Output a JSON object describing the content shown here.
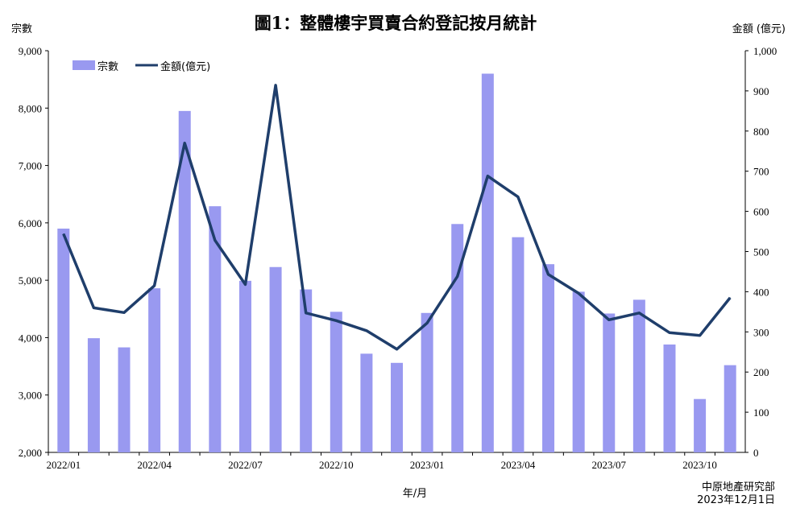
{
  "title": "圖1：整體樓宇買賣合約登記按月統計",
  "left_axis_label": "宗數",
  "right_axis_label": "金額 (億元)",
  "x_axis_label": "年/月",
  "source": [
    "中原地產研究部",
    "2023年12月1日"
  ],
  "colors": {
    "bar": "#9999f0",
    "line": "#1f3e6b"
  },
  "chart_data": {
    "type": "bar",
    "categories": [
      "2022/01",
      "2022/02",
      "2022/03",
      "2022/04",
      "2022/05",
      "2022/06",
      "2022/07",
      "2022/08",
      "2022/09",
      "2022/10",
      "2022/11",
      "2022/12",
      "2023/01",
      "2023/02",
      "2023/03",
      "2023/04",
      "2023/05",
      "2023/06",
      "2023/07",
      "2023/08",
      "2023/09",
      "2023/10",
      "2023/11"
    ],
    "x_tick_labels": [
      "2022/01",
      "2022/04",
      "2022/07",
      "2022/10",
      "2023/01",
      "2023/04",
      "2023/07",
      "2023/10"
    ],
    "series": [
      {
        "name": "宗數",
        "type": "bar",
        "axis": "left",
        "values": [
          5900,
          3990,
          3830,
          4860,
          7950,
          6290,
          4990,
          5230,
          4840,
          4450,
          3720,
          3560,
          4430,
          5980,
          8600,
          5750,
          5280,
          4800,
          4420,
          4660,
          3880,
          2930,
          3520
        ]
      },
      {
        "name": "金額(億元)",
        "type": "line",
        "axis": "right",
        "values": [
          544,
          360,
          348,
          415,
          770,
          528,
          418,
          914,
          347,
          328,
          303,
          257,
          322,
          438,
          688,
          636,
          443,
          396,
          330,
          347,
          298,
          291,
          385
        ]
      }
    ],
    "ylim_left": [
      2000,
      9000
    ],
    "ylim_right": [
      0,
      1000
    ],
    "left_ticks": [
      "2,000",
      "3,000",
      "4,000",
      "5,000",
      "6,000",
      "7,000",
      "8,000",
      "9,000"
    ],
    "right_ticks": [
      "0",
      "100",
      "200",
      "300",
      "400",
      "500",
      "600",
      "700",
      "800",
      "900",
      "1,000"
    ],
    "legend": "top-left"
  }
}
